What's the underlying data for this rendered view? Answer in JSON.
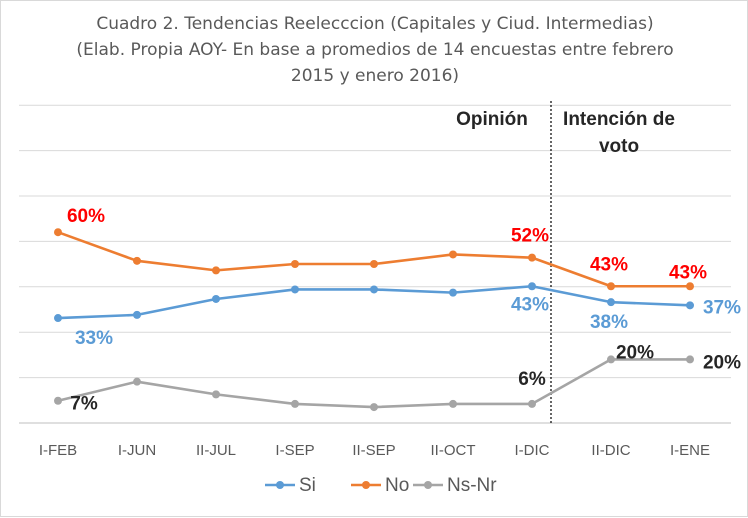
{
  "chart_data": {
    "type": "line",
    "title_lines": [
      "Cuadro 2. Tendencias Reelecccion (Capitales y Ciud. Intermedias)",
      "(Elab. Propia AOY- En base a promedios de 14 encuestas entre febrero",
      "2015 y enero 2016)"
    ],
    "categories": [
      "I-FEB",
      "I-JUN",
      "II-JUL",
      "I-SEP",
      "II-SEP",
      "II-OCT",
      "I-DIC",
      "II-DIC",
      "I-ENE"
    ],
    "ylim": [
      0,
      100
    ],
    "grid": true,
    "legend_position": "bottom",
    "series": [
      {
        "name": "Si",
        "color": "#5b9bd5",
        "values": [
          33,
          34,
          39,
          42,
          42,
          41,
          43,
          38,
          37
        ]
      },
      {
        "name": "No",
        "color": "#ed7d31",
        "values": [
          60,
          51,
          48,
          50,
          50,
          53,
          52,
          43,
          43
        ]
      },
      {
        "name": "Ns-Nr",
        "color": "#a5a5a5",
        "values": [
          7,
          13,
          9,
          6,
          5,
          6,
          6,
          20,
          20
        ]
      }
    ],
    "data_labels": [
      {
        "series": 0,
        "index": 0,
        "text": "33%",
        "color": "#5b9bd5"
      },
      {
        "series": 0,
        "index": 6,
        "text": "43%",
        "color": "#5b9bd5"
      },
      {
        "series": 0,
        "index": 7,
        "text": "38%",
        "color": "#5b9bd5"
      },
      {
        "series": 0,
        "index": 8,
        "text": "37%",
        "color": "#5b9bd5"
      },
      {
        "series": 1,
        "index": 0,
        "text": "60%",
        "color": "#ff0000"
      },
      {
        "series": 1,
        "index": 6,
        "text": "52%",
        "color": "#ff0000"
      },
      {
        "series": 1,
        "index": 7,
        "text": "43%",
        "color": "#ff0000"
      },
      {
        "series": 1,
        "index": 8,
        "text": "43%",
        "color": "#ff0000"
      },
      {
        "series": 2,
        "index": 0,
        "text": "7%",
        "color": "#262626"
      },
      {
        "series": 2,
        "index": 6,
        "text": "6%",
        "color": "#262626"
      },
      {
        "series": 2,
        "index": 7,
        "text": "20%",
        "color": "#262626"
      },
      {
        "series": 2,
        "index": 8,
        "text": "20%",
        "color": "#262626"
      }
    ],
    "annotations": {
      "left_section": "Opinión",
      "right_section_lines": [
        "Intención de",
        "voto"
      ]
    }
  }
}
